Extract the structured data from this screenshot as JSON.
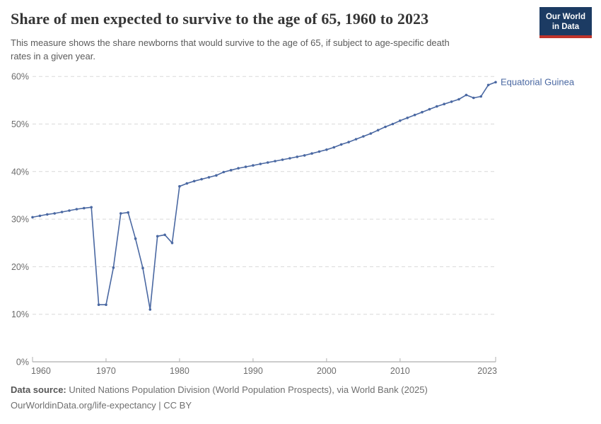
{
  "header": {
    "title": "Share of men expected to survive to the age of 65, 1960 to 2023",
    "subtitle_lines": [
      "This measure shows the share newborns that would survive to the age of 65, if subject to age-specific death",
      "rates in a given year."
    ],
    "logo": {
      "line1": "Our World",
      "line2": "in Data"
    }
  },
  "chart_data": {
    "type": "line",
    "title": "Share of men expected to survive to the age of 65, 1960 to 2023",
    "series_label": "Equatorial Guinea",
    "x": [
      1960,
      1961,
      1962,
      1963,
      1964,
      1965,
      1966,
      1967,
      1968,
      1969,
      1970,
      1971,
      1972,
      1973,
      1974,
      1975,
      1976,
      1977,
      1978,
      1979,
      1980,
      1981,
      1982,
      1983,
      1984,
      1985,
      1986,
      1987,
      1988,
      1989,
      1990,
      1991,
      1992,
      1993,
      1994,
      1995,
      1996,
      1997,
      1998,
      1999,
      2000,
      2001,
      2002,
      2003,
      2004,
      2005,
      2006,
      2007,
      2008,
      2009,
      2010,
      2011,
      2012,
      2013,
      2014,
      2015,
      2016,
      2017,
      2018,
      2019,
      2020,
      2021,
      2022,
      2023
    ],
    "values": [
      30.4,
      30.7,
      31.0,
      31.2,
      31.5,
      31.8,
      32.1,
      32.3,
      32.5,
      12.0,
      12.0,
      19.8,
      31.2,
      31.4,
      25.9,
      19.7,
      11.0,
      26.4,
      26.7,
      25.0,
      36.9,
      37.5,
      38.0,
      38.4,
      38.8,
      39.2,
      39.9,
      40.3,
      40.7,
      41.0,
      41.3,
      41.6,
      41.9,
      42.2,
      42.5,
      42.8,
      43.1,
      43.4,
      43.8,
      44.2,
      44.6,
      45.1,
      45.7,
      46.2,
      46.8,
      47.4,
      48.0,
      48.7,
      49.4,
      50.0,
      50.7,
      51.3,
      51.9,
      52.5,
      53.1,
      53.7,
      54.2,
      54.7,
      55.2,
      56.1,
      55.5,
      55.8,
      58.2,
      58.8
    ],
    "xlabel": "",
    "ylabel": "",
    "xlim": [
      1960,
      2023
    ],
    "ylim": [
      0,
      62
    ],
    "yticks": [
      0,
      10,
      20,
      30,
      40,
      50,
      60
    ],
    "ytick_suffix": "%",
    "xticks": [
      1960,
      1970,
      1980,
      1990,
      2000,
      2010,
      2023
    ],
    "grid": "dashed horizontal",
    "legend_position": "end-of-line label",
    "line_color": "#4a68a2",
    "grid_color": "#d9d9d9",
    "axis_color": "#999999",
    "tick_text_color": "#6d6d6d"
  },
  "footer": {
    "source_label": "Data source:",
    "source_text": " United Nations Population Division (World Population Prospects), via World Bank (2025)",
    "license_line": "OurWorldinData.org/life-expectancy | CC BY"
  }
}
